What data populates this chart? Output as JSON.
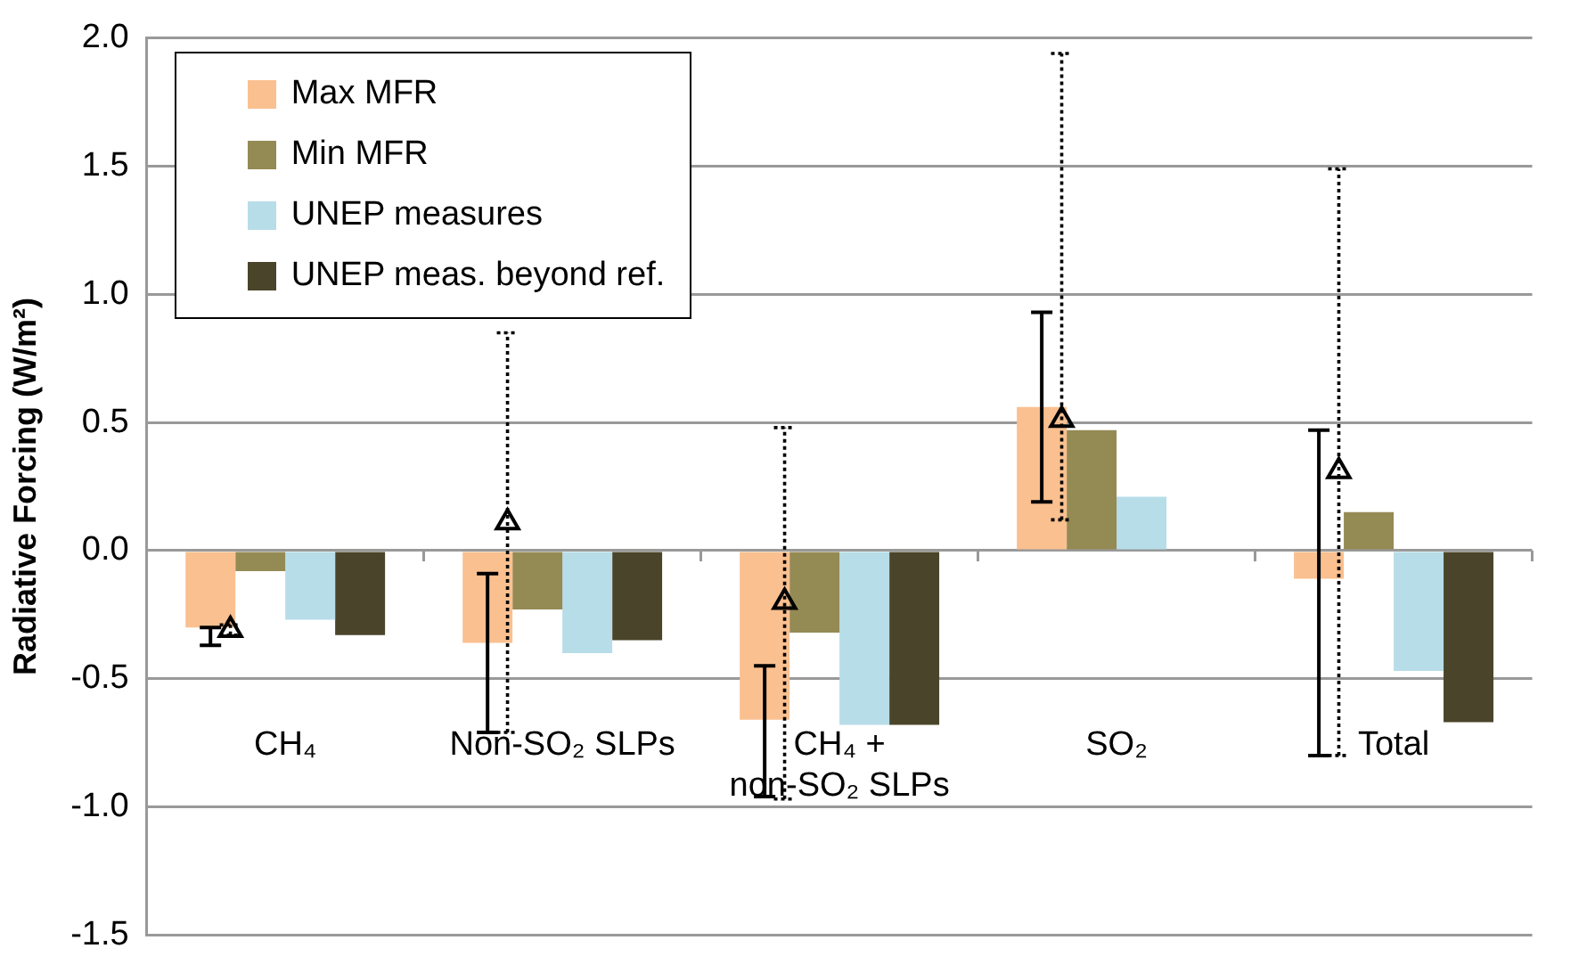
{
  "chart_data": {
    "type": "bar",
    "ylabel": "Radiative Forcing (W/m²)",
    "categories": [
      "CH₄",
      "Non-SO₂ SLPs",
      "CH₄ + non-SO₂ SLPs",
      "SO₂",
      "Total"
    ],
    "series": [
      {
        "name": "Max MFR",
        "color": "#fac090",
        "values": [
          -0.3,
          -0.36,
          -0.66,
          0.56,
          -0.11
        ],
        "errors": [
          [
            -0.37,
            -0.3
          ],
          [
            -0.71,
            -0.09
          ],
          [
            -0.96,
            -0.45
          ],
          [
            0.19,
            0.93
          ],
          [
            -0.8,
            0.47
          ]
        ]
      },
      {
        "name": "Min MFR",
        "color": "#948a54",
        "values": [
          -0.08,
          -0.23,
          -0.32,
          0.47,
          0.15
        ]
      },
      {
        "name": "UNEP measures",
        "color": "#b7dde8",
        "values": [
          -0.27,
          -0.4,
          -0.68,
          0.21,
          -0.47
        ]
      },
      {
        "name": "UNEP meas. beyond ref.",
        "color": "#4a452a",
        "values": [
          -0.33,
          -0.35,
          -0.68,
          null,
          -0.67
        ]
      },
      {
        "type": "scatter",
        "color": "#000000",
        "marker": "triangle",
        "values": [
          -0.31,
          0.11,
          -0.2,
          0.51,
          0.31
        ],
        "errors": [
          [
            -0.33,
            -0.29
          ],
          [
            -0.71,
            0.85
          ],
          [
            -0.97,
            0.48
          ],
          [
            0.12,
            1.94
          ],
          [
            -0.8,
            1.49
          ]
        ]
      }
    ],
    "ylim": [
      -1.5,
      2.0
    ],
    "yticks": [
      {
        "value": 2,
        "label": "2.0"
      },
      {
        "value": 1.5,
        "label": "1.5"
      },
      {
        "value": 1,
        "label": "1.0"
      },
      {
        "value": 0.5,
        "label": "0.5"
      },
      {
        "value": 0,
        "label": "0.0"
      },
      {
        "value": -0.5,
        "label": "-0.5"
      },
      {
        "value": -1,
        "label": "-1.0"
      },
      {
        "value": -1.5,
        "label": "-1.5"
      }
    ],
    "grid": "y",
    "legend": "top left"
  }
}
